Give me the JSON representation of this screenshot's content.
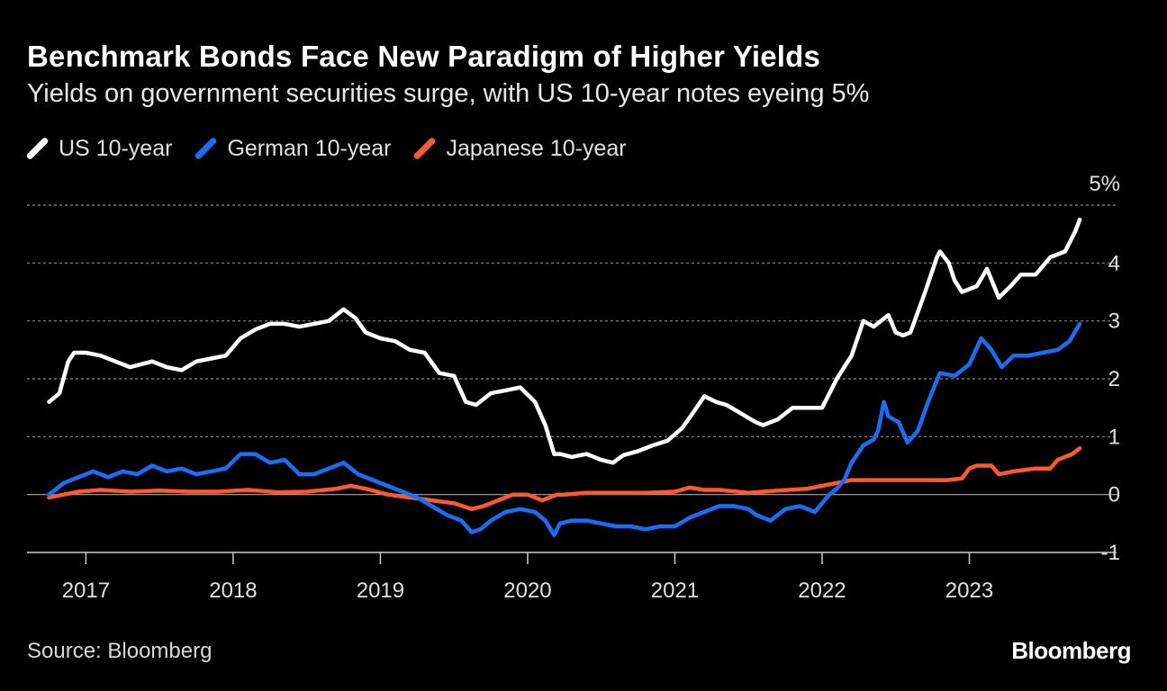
{
  "title": "Benchmark Bonds Face New Paradigm of Higher Yields",
  "subtitle": "Yields on government securities surge, with US 10-year notes eyeing 5%",
  "source": "Source: Bloomberg",
  "logo": "Bloomberg",
  "chart_data": {
    "type": "line",
    "title": "Benchmark Bonds Face New Paradigm of Higher Yields",
    "subtitle": "Yields on government securities surge, with US 10-year notes eyeing 5%",
    "xlabel": "",
    "ylabel": "",
    "xlim": [
      2016.6,
      2024.0
    ],
    "ylim": [
      -1,
      5
    ],
    "x_ticks": [
      2017,
      2018,
      2019,
      2020,
      2021,
      2022,
      2023
    ],
    "x_tick_labels": [
      "2017",
      "2018",
      "2019",
      "2020",
      "2021",
      "2022",
      "2023"
    ],
    "y_ticks": [
      -1,
      0,
      1,
      2,
      3,
      4,
      5
    ],
    "y_tick_labels": [
      "-1",
      "0",
      "1",
      "2",
      "3",
      "4",
      "5%"
    ],
    "grid": true,
    "legend_position": "top-left",
    "series": [
      {
        "name": "US 10-year",
        "color": "#ffffff",
        "x": [
          2016.75,
          2016.82,
          2016.88,
          2016.92,
          2017.0,
          2017.1,
          2017.2,
          2017.3,
          2017.45,
          2017.55,
          2017.65,
          2017.75,
          2017.85,
          2017.95,
          2018.05,
          2018.15,
          2018.25,
          2018.35,
          2018.45,
          2018.55,
          2018.65,
          2018.75,
          2018.83,
          2018.9,
          2019.0,
          2019.1,
          2019.2,
          2019.3,
          2019.4,
          2019.5,
          2019.58,
          2019.65,
          2019.75,
          2019.85,
          2019.95,
          2020.05,
          2020.12,
          2020.18,
          2020.22,
          2020.3,
          2020.4,
          2020.5,
          2020.58,
          2020.65,
          2020.75,
          2020.85,
          2020.95,
          2021.05,
          2021.12,
          2021.2,
          2021.28,
          2021.35,
          2021.45,
          2021.55,
          2021.6,
          2021.7,
          2021.8,
          2021.9,
          2022.0,
          2022.1,
          2022.2,
          2022.28,
          2022.35,
          2022.45,
          2022.5,
          2022.55,
          2022.6,
          2022.7,
          2022.78,
          2022.8,
          2022.86,
          2022.9,
          2022.95,
          2023.05,
          2023.12,
          2023.2,
          2023.28,
          2023.35,
          2023.45,
          2023.55,
          2023.65,
          2023.72,
          2023.75
        ],
        "values": [
          1.6,
          1.75,
          2.3,
          2.45,
          2.45,
          2.4,
          2.3,
          2.2,
          2.3,
          2.2,
          2.15,
          2.3,
          2.35,
          2.4,
          2.7,
          2.85,
          2.95,
          2.95,
          2.9,
          2.95,
          3.0,
          3.2,
          3.05,
          2.8,
          2.7,
          2.65,
          2.5,
          2.45,
          2.1,
          2.05,
          1.6,
          1.55,
          1.75,
          1.8,
          1.85,
          1.6,
          1.2,
          0.7,
          0.7,
          0.65,
          0.7,
          0.6,
          0.55,
          0.68,
          0.75,
          0.85,
          0.93,
          1.15,
          1.4,
          1.7,
          1.6,
          1.55,
          1.4,
          1.25,
          1.2,
          1.3,
          1.5,
          1.5,
          1.5,
          2.0,
          2.4,
          3.0,
          2.9,
          3.1,
          2.8,
          2.75,
          2.8,
          3.5,
          4.1,
          4.2,
          4.0,
          3.7,
          3.5,
          3.6,
          3.9,
          3.4,
          3.6,
          3.8,
          3.8,
          4.1,
          4.2,
          4.55,
          4.75
        ]
      },
      {
        "name": "German 10-year",
        "color": "#1a6ef5",
        "x": [
          2016.75,
          2016.85,
          2016.95,
          2017.05,
          2017.15,
          2017.25,
          2017.35,
          2017.45,
          2017.55,
          2017.65,
          2017.75,
          2017.85,
          2017.95,
          2018.05,
          2018.15,
          2018.25,
          2018.35,
          2018.45,
          2018.55,
          2018.65,
          2018.75,
          2018.85,
          2018.95,
          2019.05,
          2019.15,
          2019.25,
          2019.35,
          2019.45,
          2019.55,
          2019.62,
          2019.68,
          2019.75,
          2019.85,
          2019.95,
          2020.05,
          2020.12,
          2020.18,
          2020.22,
          2020.3,
          2020.4,
          2020.5,
          2020.6,
          2020.7,
          2020.8,
          2020.9,
          2021.0,
          2021.1,
          2021.2,
          2021.3,
          2021.4,
          2021.5,
          2021.55,
          2021.65,
          2021.75,
          2021.85,
          2021.95,
          2022.05,
          2022.1,
          2022.15,
          2022.2,
          2022.28,
          2022.35,
          2022.38,
          2022.42,
          2022.45,
          2022.52,
          2022.58,
          2022.65,
          2022.72,
          2022.8,
          2022.9,
          2023.0,
          2023.08,
          2023.15,
          2023.22,
          2023.3,
          2023.4,
          2023.5,
          2023.6,
          2023.68,
          2023.75
        ],
        "values": [
          0.0,
          0.2,
          0.3,
          0.4,
          0.3,
          0.4,
          0.35,
          0.5,
          0.4,
          0.45,
          0.35,
          0.4,
          0.45,
          0.7,
          0.7,
          0.55,
          0.6,
          0.35,
          0.35,
          0.45,
          0.55,
          0.35,
          0.25,
          0.15,
          0.05,
          -0.05,
          -0.2,
          -0.35,
          -0.45,
          -0.65,
          -0.6,
          -0.45,
          -0.3,
          -0.25,
          -0.3,
          -0.45,
          -0.7,
          -0.5,
          -0.45,
          -0.45,
          -0.5,
          -0.55,
          -0.55,
          -0.6,
          -0.55,
          -0.55,
          -0.4,
          -0.3,
          -0.2,
          -0.2,
          -0.25,
          -0.35,
          -0.45,
          -0.25,
          -0.2,
          -0.3,
          0.0,
          0.1,
          0.25,
          0.55,
          0.85,
          0.95,
          1.1,
          1.6,
          1.35,
          1.25,
          0.9,
          1.1,
          1.6,
          2.1,
          2.05,
          2.25,
          2.7,
          2.5,
          2.2,
          2.4,
          2.4,
          2.45,
          2.5,
          2.65,
          2.95
        ]
      },
      {
        "name": "Japanese 10-year",
        "color": "#ff5a2d",
        "x": [
          2016.75,
          2016.85,
          2016.95,
          2017.1,
          2017.3,
          2017.5,
          2017.7,
          2017.9,
          2018.1,
          2018.3,
          2018.5,
          2018.7,
          2018.8,
          2018.9,
          2019.05,
          2019.2,
          2019.35,
          2019.5,
          2019.62,
          2019.7,
          2019.8,
          2019.9,
          2020.0,
          2020.1,
          2020.2,
          2020.25,
          2020.4,
          2020.6,
          2020.8,
          2021.0,
          2021.1,
          2021.2,
          2021.3,
          2021.5,
          2021.7,
          2021.9,
          2022.0,
          2022.1,
          2022.2,
          2022.3,
          2022.5,
          2022.7,
          2022.85,
          2022.95,
          2023.0,
          2023.05,
          2023.15,
          2023.2,
          2023.3,
          2023.45,
          2023.55,
          2023.6,
          2023.7,
          2023.75
        ],
        "values": [
          -0.05,
          0.0,
          0.05,
          0.08,
          0.05,
          0.07,
          0.05,
          0.05,
          0.08,
          0.04,
          0.05,
          0.1,
          0.15,
          0.1,
          0.0,
          -0.05,
          -0.1,
          -0.15,
          -0.25,
          -0.2,
          -0.1,
          0.0,
          0.0,
          -0.1,
          0.0,
          0.0,
          0.03,
          0.03,
          0.03,
          0.05,
          0.12,
          0.08,
          0.08,
          0.03,
          0.07,
          0.1,
          0.15,
          0.2,
          0.25,
          0.25,
          0.25,
          0.25,
          0.25,
          0.28,
          0.45,
          0.5,
          0.5,
          0.35,
          0.4,
          0.45,
          0.45,
          0.6,
          0.7,
          0.8
        ]
      }
    ]
  }
}
